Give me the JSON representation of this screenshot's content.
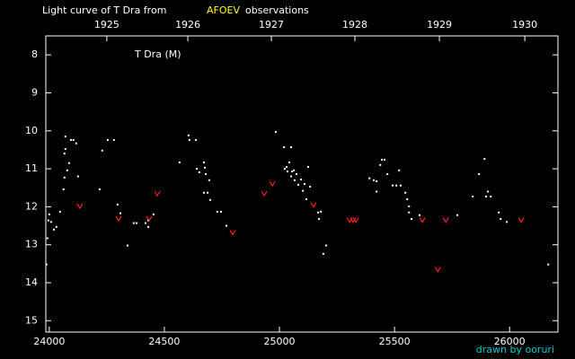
{
  "chart_data": {
    "type": "scatter",
    "title_prefix": "Light curve of T Dra from",
    "title_source": "AFOEV",
    "title_suffix": "observations",
    "star_label": "T Dra (M)",
    "credit": "drawn by ooruri",
    "xlim": [
      23985,
      26210
    ],
    "ylim": [
      7.5,
      15.3
    ],
    "y_inverted": true,
    "xticks": [
      24000,
      24500,
      25000,
      25500,
      26000
    ],
    "yticks": [
      8,
      9,
      10,
      11,
      12,
      13,
      14,
      15
    ],
    "x2ticks": [
      {
        "value": 24250,
        "label": "1925"
      },
      {
        "value": 24602,
        "label": "1926"
      },
      {
        "value": 24965,
        "label": "1927"
      },
      {
        "value": 25328,
        "label": "1928"
      },
      {
        "value": 25695,
        "label": "1929"
      },
      {
        "value": 26066,
        "label": "1930"
      }
    ],
    "series": [
      {
        "color": "#ffffff",
        "marker": "dot",
        "x": [
          23988,
          23992,
          23996,
          24000,
          24008,
          24020,
          24031,
          24047,
          24062,
          24066,
          24066,
          24070,
          24070,
          24078,
          24086,
          24094,
          24105,
          24117,
          24125,
          24219,
          24230,
          24254,
          24281,
          24297,
          24309,
          24340,
          24367,
          24379,
          24418,
          24430,
          24430,
          24453,
          24566,
          24605,
          24609,
          24637,
          24641,
          24652,
          24672,
          24676,
          24680,
          24672,
          24688,
          24695,
          24699,
          24730,
          24746,
          24770,
          24984,
          25020,
          25023,
          25031,
          25035,
          25043,
          25051,
          25051,
          25055,
          25063,
          25066,
          25074,
          25082,
          25094,
          25102,
          25109,
          25117,
          25125,
          25133,
          25168,
          25172,
          25180,
          25191,
          25203,
          25391,
          25410,
          25422,
          25422,
          25438,
          25445,
          25457,
          25469,
          25492,
          25508,
          25520,
          25527,
          25547,
          25555,
          25563,
          25563,
          25574,
          25609,
          25773,
          25840,
          25867,
          25891,
          25898,
          25906,
          25918,
          25953,
          25961,
          25988,
          26168
        ],
        "values": [
          13.52,
          12.83,
          12.36,
          12.2,
          12.4,
          12.6,
          12.53,
          12.13,
          11.54,
          11.23,
          10.6,
          10.48,
          10.15,
          11.04,
          10.85,
          10.24,
          10.24,
          10.33,
          11.2,
          11.54,
          10.52,
          10.24,
          10.24,
          11.94,
          12.17,
          13.02,
          12.43,
          12.43,
          12.43,
          12.53,
          12.36,
          12.2,
          10.83,
          10.12,
          10.24,
          10.24,
          11.0,
          11.09,
          10.83,
          10.97,
          11.14,
          11.63,
          11.63,
          11.3,
          11.82,
          12.13,
          12.13,
          12.5,
          10.03,
          10.43,
          11.0,
          10.95,
          11.07,
          10.83,
          10.43,
          11.2,
          11.07,
          11.04,
          11.3,
          11.14,
          11.42,
          11.28,
          11.58,
          11.4,
          11.8,
          10.95,
          11.47,
          12.15,
          12.32,
          12.13,
          13.24,
          13.02,
          11.25,
          11.3,
          11.6,
          11.33,
          10.9,
          10.76,
          10.76,
          11.14,
          11.44,
          11.44,
          11.04,
          11.44,
          11.63,
          11.8,
          11.99,
          12.15,
          12.32,
          12.22,
          12.22,
          11.73,
          11.14,
          10.74,
          11.73,
          11.6,
          11.73,
          12.15,
          12.32,
          12.4,
          13.52
        ]
      },
      {
        "color": "#ff2020",
        "marker": "v",
        "x": [
          24133,
          24301,
          24434,
          24469,
          24797,
          24934,
          24969,
          25148,
          25305,
          25320,
          25332,
          25621,
          25688,
          25723,
          26051
        ],
        "values": [
          11.99,
          12.32,
          12.32,
          11.66,
          12.69,
          11.66,
          11.4,
          11.96,
          12.36,
          12.36,
          12.36,
          12.36,
          13.66,
          12.36,
          12.36
        ]
      }
    ]
  }
}
